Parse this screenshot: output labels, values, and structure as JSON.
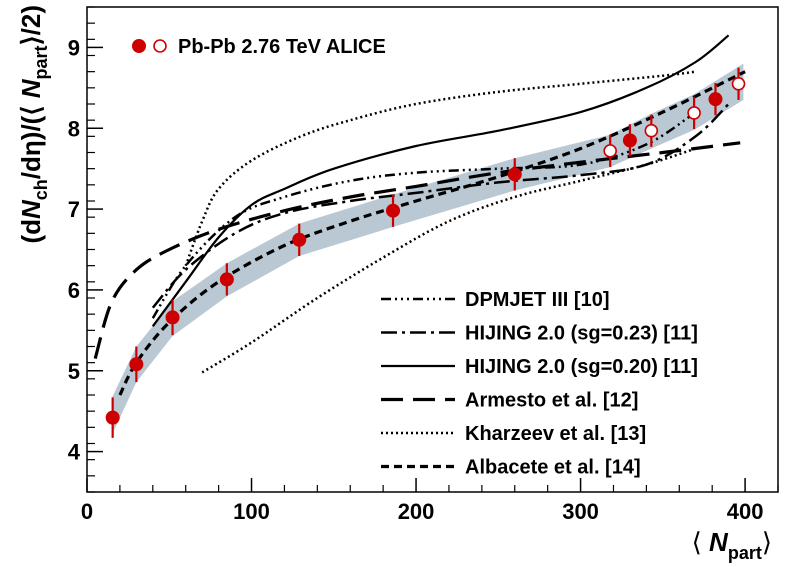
{
  "chart_data": {
    "type": "line",
    "xlabel": {
      "prefix": "⟨ ",
      "main": "N",
      "sub": "part",
      "suffix": "⟩"
    },
    "ylabel": {
      "p1": "(d",
      "n1": "N",
      "s1": "ch",
      "p2": "/dη)/(⟨ ",
      "n2": "N",
      "s2": "part",
      "p3": "⟩/2)"
    },
    "xlim": [
      0,
      420
    ],
    "ylim": [
      3.5,
      9.5
    ],
    "xticks": [
      0,
      100,
      200,
      300,
      400
    ],
    "xtick_labels": [
      "0",
      "100",
      "200",
      "300",
      "400"
    ],
    "yticks": [
      4,
      5,
      6,
      7,
      8,
      9
    ],
    "ytick_labels": [
      "4",
      "5",
      "6",
      "7",
      "8",
      "9"
    ],
    "data_legend": "Pb-Pb 2.76 TeV ALICE",
    "colors": {
      "data": "#cc0000",
      "band": "#b9c8d3",
      "line": "#000000"
    },
    "data_points": [
      {
        "x": 15.6,
        "y": 4.42,
        "err": 0.25,
        "style": "filled"
      },
      {
        "x": 30.0,
        "y": 5.08,
        "err": 0.22,
        "style": "filled"
      },
      {
        "x": 52.0,
        "y": 5.66,
        "err": 0.22,
        "style": "filled"
      },
      {
        "x": 85.0,
        "y": 6.13,
        "err": 0.2,
        "style": "filled"
      },
      {
        "x": 129.0,
        "y": 6.62,
        "err": 0.2,
        "style": "filled"
      },
      {
        "x": 186.0,
        "y": 6.98,
        "err": 0.2,
        "style": "filled"
      },
      {
        "x": 260.0,
        "y": 7.43,
        "err": 0.2,
        "style": "filled"
      },
      {
        "x": 330.0,
        "y": 7.85,
        "err": 0.2,
        "style": "filled"
      },
      {
        "x": 382.0,
        "y": 8.36,
        "err": 0.2,
        "style": "filled"
      },
      {
        "x": 318.0,
        "y": 7.72,
        "err": 0.2,
        "style": "open"
      },
      {
        "x": 343.0,
        "y": 7.97,
        "err": 0.2,
        "style": "open"
      },
      {
        "x": 369.0,
        "y": 8.19,
        "err": 0.2,
        "style": "open"
      },
      {
        "x": 396.0,
        "y": 8.55,
        "err": 0.2,
        "style": "open"
      }
    ],
    "band": {
      "x": [
        15,
        30,
        52,
        85,
        129,
        186,
        260,
        318,
        343,
        369,
        399
      ],
      "lower": [
        4.2,
        4.86,
        5.43,
        5.92,
        6.42,
        6.78,
        7.23,
        7.52,
        7.75,
        7.98,
        8.35
      ],
      "upper": [
        4.66,
        5.3,
        5.86,
        6.33,
        6.82,
        7.18,
        7.63,
        7.92,
        8.18,
        8.42,
        8.8
      ]
    },
    "series": [
      {
        "name": "DPMJET III [10]",
        "dash": "10,4,2,4,2,4,2,4",
        "width": 2.5,
        "x": [
          40,
          60,
          90,
          120,
          160,
          200,
          250,
          300,
          340,
          370
        ],
        "y": [
          5.65,
          6.3,
          6.9,
          7.15,
          7.35,
          7.45,
          7.5,
          7.55,
          7.8,
          8.2
        ]
      },
      {
        "name": "HIJING 2.0 (sg=0.23) [11]",
        "dash": "16,5,3,5",
        "width": 2.5,
        "x": [
          40,
          60,
          90,
          120,
          160,
          200,
          250,
          300,
          340,
          370,
          390
        ],
        "y": [
          5.78,
          6.25,
          6.7,
          6.95,
          7.1,
          7.2,
          7.33,
          7.42,
          7.55,
          7.9,
          8.3
        ]
      },
      {
        "name": "HIJING 2.0 (sg=0.20) [11]",
        "dash": "",
        "width": 2.2,
        "x": [
          40,
          60,
          80,
          100,
          120,
          150,
          200,
          250,
          300,
          340,
          370,
          390
        ],
        "y": [
          5.55,
          6.1,
          6.65,
          7.05,
          7.25,
          7.5,
          7.78,
          7.97,
          8.2,
          8.5,
          8.82,
          9.15
        ]
      },
      {
        "name": "Armesto et al. [12]",
        "dash": "22,10",
        "width": 3.2,
        "x": [
          5,
          15,
          30,
          50,
          80,
          120,
          160,
          200,
          250,
          300,
          350,
          397
        ],
        "y": [
          5.15,
          5.85,
          6.25,
          6.5,
          6.75,
          6.98,
          7.15,
          7.28,
          7.45,
          7.58,
          7.7,
          7.82
        ]
      },
      {
        "name": "Kharzeev et al. [13]",
        "dash": "2,3",
        "width": 2.5,
        "x": [
          60,
          70,
          80,
          100,
          130,
          160,
          200,
          250,
          300,
          350,
          370
        ],
        "y": [
          6.3,
          6.85,
          7.25,
          7.6,
          7.9,
          8.1,
          8.3,
          8.45,
          8.55,
          8.65,
          8.7
        ]
      },
      {
        "name": "Kharzeev et al. [13] (lower branch)",
        "dash": "2,3",
        "width": 2.5,
        "x": [
          70,
          100,
          140,
          180,
          220,
          260,
          300,
          340,
          370
        ],
        "y": [
          4.98,
          5.35,
          5.9,
          6.4,
          6.85,
          7.15,
          7.35,
          7.55,
          7.75
        ]
      },
      {
        "name": "Albacete et al. [14]",
        "dash": "8,5",
        "width": 3.2,
        "x": [
          20,
          30,
          50,
          80,
          120,
          160,
          200,
          250,
          300,
          350,
          400
        ],
        "y": [
          4.7,
          5.1,
          5.6,
          6.1,
          6.55,
          6.85,
          7.1,
          7.4,
          7.75,
          8.2,
          8.7
        ]
      }
    ],
    "legend": [
      {
        "label": "DPMJET III [10]",
        "dash": "10,4,2,4,2,4,2,4",
        "width": 2.5
      },
      {
        "label": "HIJING 2.0 (sg=0.23) [11]",
        "dash": "16,5,3,5",
        "width": 2.5
      },
      {
        "label": "HIJING 2.0 (sg=0.20) [11]",
        "dash": "",
        "width": 2.2
      },
      {
        "label": "Armesto et al. [12]",
        "dash": "22,10",
        "width": 3.2
      },
      {
        "label": "Kharzeev et al. [13]",
        "dash": "2,3",
        "width": 2.5
      },
      {
        "label": "Albacete et al. [14]",
        "dash": "8,5",
        "width": 3.2
      }
    ]
  }
}
